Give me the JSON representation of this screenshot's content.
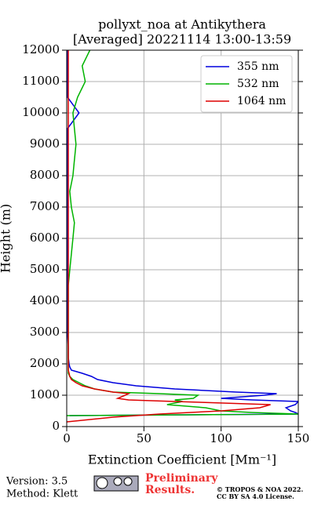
{
  "chart_data": {
    "type": "profile",
    "title": "pollyxt_noa at Antikythera",
    "subtitle": "[Averaged] 20221114 13:00-13:59",
    "x_label": "Extinction Coefficient [Mm⁻¹]",
    "y_label": "Height (m)",
    "xlim": [
      0,
      150
    ],
    "xticks": [
      0,
      50,
      100,
      150
    ],
    "ylim": [
      0,
      12000
    ],
    "yticks": [
      0,
      1000,
      2000,
      3000,
      4000,
      5000,
      6000,
      7000,
      8000,
      9000,
      10000,
      11000,
      12000
    ],
    "grid": true,
    "legend": "upper right",
    "y": [
      0,
      150,
      300,
      350,
      400,
      450,
      500,
      600,
      700,
      800,
      850,
      900,
      1000,
      1050,
      1100,
      1200,
      1300,
      1400,
      1500,
      1600,
      1700,
      1800,
      1900,
      2000,
      2200,
      2500,
      3000,
      3500,
      4000,
      4500,
      5000,
      5500,
      6000,
      6500,
      7000,
      7500,
      8000,
      8500,
      9000,
      9500,
      10000,
      10500,
      11000,
      11500,
      12000
    ],
    "series": [
      {
        "name": "355 nm",
        "color": "#0000dd",
        "values": [
          null,
          null,
          null,
          2,
          150,
          148,
          145,
          142,
          148,
          150,
          120,
          100,
          128,
          136,
          110,
          70,
          45,
          30,
          20,
          16,
          10,
          3,
          2,
          1.5,
          1,
          1,
          0.5,
          0.5,
          0.5,
          0.5,
          0.5,
          0.5,
          0.5,
          0.5,
          0.5,
          0.5,
          0.5,
          0.5,
          0.5,
          0.5,
          8,
          0.5,
          0.5,
          0.5,
          0.5
        ]
      },
      {
        "name": "532 nm",
        "color": "#00b400",
        "values": [
          null,
          null,
          null,
          0,
          150,
          120,
          100,
          90,
          65,
          75,
          70,
          82,
          85,
          60,
          30,
          18,
          12,
          8,
          4,
          2,
          1,
          1,
          1,
          1,
          1,
          1,
          1,
          1,
          1,
          1,
          2,
          3,
          4,
          5,
          3,
          2,
          4,
          5,
          6,
          5,
          4,
          7,
          12,
          10,
          15
        ]
      },
      {
        "name": "1064 nm",
        "color": "#dd0000",
        "values": [
          null,
          0,
          30,
          45,
          60,
          80,
          100,
          125,
          132,
          70,
          40,
          33,
          38,
          40,
          30,
          18,
          10,
          6,
          3,
          2,
          1.5,
          1,
          1,
          1,
          1,
          1,
          1,
          1,
          1,
          1,
          1,
          1,
          1,
          1,
          1,
          1,
          1,
          1,
          1,
          1,
          1,
          1,
          1,
          1,
          1
        ]
      }
    ]
  },
  "footer": {
    "version": "Version: 3.5",
    "method": "Method: Klett",
    "preliminary": "Preliminary Results.",
    "copyright": "© TROPOS & NOA 2022.",
    "license": "CC BY SA 4.0 License."
  }
}
